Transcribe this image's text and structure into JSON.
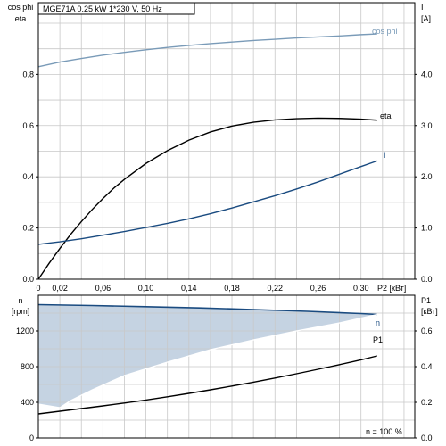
{
  "title": "MGE71A   0.25 kW   1*230 V, 50 Hz",
  "colors": {
    "frame": "#000000",
    "grid": "#c8c8c8",
    "cosphi": "#7a9bb8",
    "eta": "#000000",
    "current": "#1a4b80",
    "speed": "#1a4b80",
    "speed_fill": "#c5d3e2",
    "p1": "#000000"
  },
  "chart_data": [
    {
      "type": "line",
      "xlabel": "P2 [кВт]",
      "xlim": [
        0,
        0.35
      ],
      "xticks": [
        "0",
        "0,02",
        "0,06",
        "0,10",
        "0,14",
        "0,18",
        "0,22",
        "0,26",
        "0,30"
      ],
      "left_axis": {
        "label_lines": [
          "cos phi",
          "eta"
        ],
        "ylim": [
          0,
          1.08
        ],
        "ticks": [
          "0.0",
          "0.2",
          "0.4",
          "0.6",
          "0.8"
        ]
      },
      "right_axis": {
        "label_lines": [
          "I",
          "[A]"
        ],
        "ylim": [
          0,
          5.4
        ],
        "ticks": [
          "0.0",
          "1.0",
          "2.0",
          "3.0",
          "4.0"
        ]
      },
      "grid": true,
      "series": [
        {
          "name": "cos phi",
          "axis": "left",
          "x": [
            0,
            0.02,
            0.04,
            0.06,
            0.08,
            0.1,
            0.12,
            0.14,
            0.16,
            0.18,
            0.2,
            0.22,
            0.24,
            0.26,
            0.28,
            0.3,
            0.315
          ],
          "y": [
            0.83,
            0.848,
            0.862,
            0.875,
            0.886,
            0.896,
            0.905,
            0.913,
            0.92,
            0.926,
            0.932,
            0.937,
            0.942,
            0.946,
            0.95,
            0.955,
            0.958
          ]
        },
        {
          "name": "eta",
          "axis": "left",
          "x": [
            0,
            0.01,
            0.02,
            0.03,
            0.04,
            0.05,
            0.06,
            0.07,
            0.08,
            0.1,
            0.12,
            0.14,
            0.16,
            0.18,
            0.2,
            0.22,
            0.24,
            0.26,
            0.28,
            0.3,
            0.315
          ],
          "y": [
            0.0,
            0.062,
            0.12,
            0.175,
            0.225,
            0.272,
            0.315,
            0.355,
            0.39,
            0.452,
            0.502,
            0.543,
            0.575,
            0.598,
            0.613,
            0.622,
            0.627,
            0.629,
            0.628,
            0.625,
            0.621
          ]
        },
        {
          "name": "I",
          "axis": "right",
          "x": [
            0,
            0.02,
            0.04,
            0.06,
            0.08,
            0.1,
            0.12,
            0.14,
            0.16,
            0.18,
            0.2,
            0.22,
            0.24,
            0.26,
            0.28,
            0.3,
            0.315
          ],
          "y": [
            0.68,
            0.73,
            0.79,
            0.86,
            0.93,
            1.01,
            1.09,
            1.18,
            1.28,
            1.39,
            1.51,
            1.63,
            1.76,
            1.9,
            2.05,
            2.2,
            2.31
          ]
        }
      ]
    },
    {
      "type": "area",
      "xlim": [
        0,
        0.35
      ],
      "left_axis": {
        "label_lines": [
          "n",
          "[rpm]"
        ],
        "ylim": [
          0,
          1600
        ],
        "ticks": [
          "0",
          "400",
          "800",
          "1200"
        ]
      },
      "right_axis": {
        "label_lines": [
          "P1",
          "[кВт]"
        ],
        "ylim": [
          0,
          0.8
        ],
        "ticks": [
          "0.0",
          "0.2",
          "0.4",
          "0.6"
        ]
      },
      "grid": true,
      "annotation": "n = 100 %",
      "series": [
        {
          "name": "n",
          "axis": "left",
          "role": "upper",
          "x": [
            0,
            0.05,
            0.1,
            0.15,
            0.2,
            0.25,
            0.3,
            0.315
          ],
          "y": [
            1495,
            1485,
            1472,
            1458,
            1440,
            1420,
            1395,
            1385
          ]
        },
        {
          "name": "",
          "axis": "left",
          "role": "lower",
          "x": [
            0,
            0.02,
            0.03,
            0.05,
            0.08,
            0.12,
            0.16,
            0.2,
            0.24,
            0.28,
            0.315
          ],
          "y": [
            380,
            340,
            420,
            540,
            700,
            850,
            990,
            1100,
            1200,
            1290,
            1385
          ]
        },
        {
          "name": "P1",
          "axis": "right",
          "x": [
            0,
            0.02,
            0.04,
            0.06,
            0.08,
            0.1,
            0.12,
            0.14,
            0.16,
            0.18,
            0.2,
            0.22,
            0.24,
            0.26,
            0.28,
            0.3,
            0.315
          ],
          "y": [
            0.135,
            0.15,
            0.165,
            0.18,
            0.196,
            0.213,
            0.231,
            0.25,
            0.27,
            0.291,
            0.313,
            0.336,
            0.36,
            0.385,
            0.411,
            0.438,
            0.46
          ]
        }
      ]
    }
  ]
}
